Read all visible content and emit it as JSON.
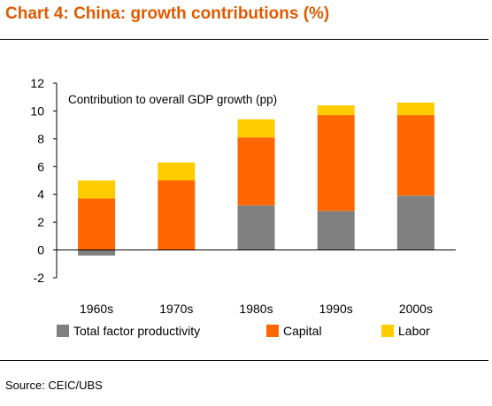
{
  "header": {
    "title": "Chart 4: China: growth contributions (%)"
  },
  "footer": {
    "source": "Source: CEIC/UBS"
  },
  "colors": {
    "title": "#E05A00",
    "tfp": "#808080",
    "capital": "#FF6600",
    "labor": "#FFCC00"
  },
  "chart_data": {
    "type": "bar",
    "stacked": true,
    "annotation": "Contribution to overall GDP growth (pp)",
    "categories": [
      "1960s",
      "1970s",
      "1980s",
      "1990s",
      "2000s"
    ],
    "series": [
      {
        "name": "Total factor productivity",
        "color": "#808080",
        "values": [
          -0.4,
          0.0,
          3.2,
          2.8,
          3.9
        ]
      },
      {
        "name": "Capital",
        "color": "#FF6600",
        "values": [
          3.7,
          5.0,
          4.9,
          6.9,
          5.8
        ]
      },
      {
        "name": "Labor",
        "color": "#FFCC00",
        "values": [
          1.3,
          1.3,
          1.3,
          0.7,
          0.9
        ]
      }
    ],
    "ylim": [
      -2,
      12
    ],
    "yticks": [
      "-2",
      "0",
      "2",
      "4",
      "6",
      "8",
      "10",
      "12"
    ],
    "grid": false,
    "legend": "bottom"
  }
}
